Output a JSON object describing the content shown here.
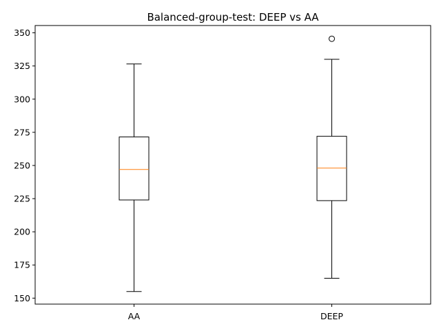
{
  "chart_data": {
    "type": "box",
    "title": "Balanced-group-test: DEEP vs AA",
    "xlabel": "",
    "ylabel": "",
    "categories": [
      "AA",
      "DEEP"
    ],
    "ylim": [
      145.5,
      355.5
    ],
    "yticks": [
      150,
      175,
      200,
      225,
      250,
      275,
      300,
      325,
      350
    ],
    "grid": false,
    "boxes": [
      {
        "label": "AA",
        "whisker_low": 155,
        "q1": 224,
        "median": 247,
        "q3": 271.5,
        "whisker_high": 326.5,
        "outliers": []
      },
      {
        "label": "DEEP",
        "whisker_low": 165,
        "q1": 223.5,
        "median": 248,
        "q3": 272,
        "whisker_high": 330,
        "outliers": [
          345.5
        ]
      }
    ],
    "colors": {
      "box": "#000000",
      "median": "#ff7f0e",
      "outlier": "#000000"
    }
  }
}
